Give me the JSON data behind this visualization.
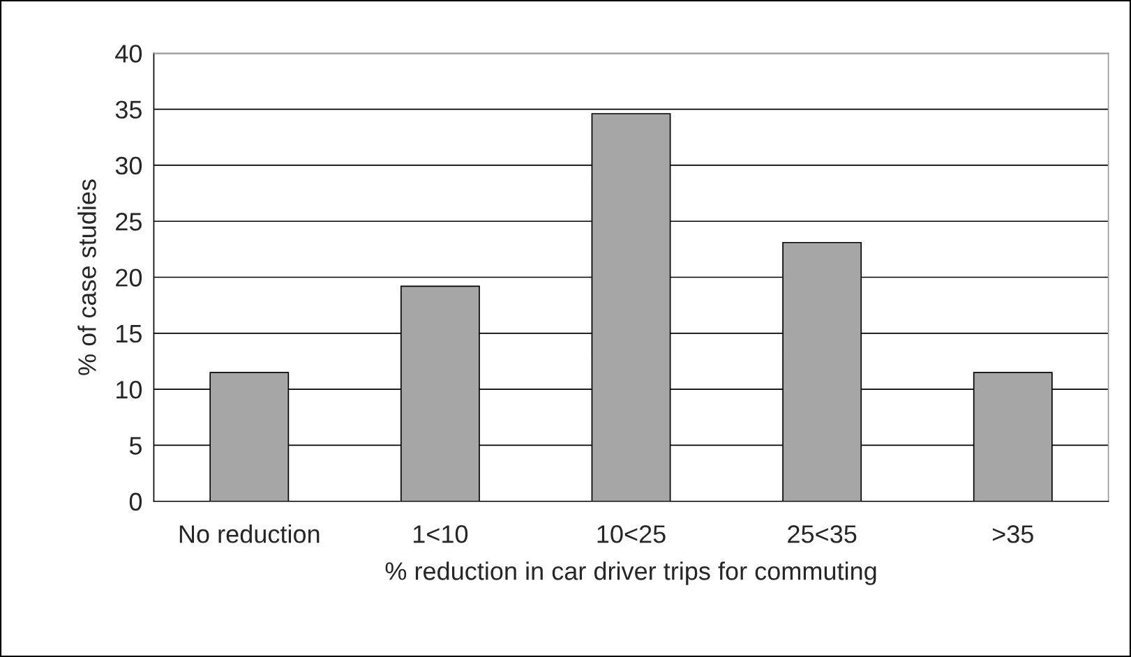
{
  "chart_data": {
    "type": "bar",
    "xlabel": "% reduction in car driver trips for commuting",
    "ylabel": "% of case studies",
    "categories": [
      "No reduction",
      "1<10",
      "10<25",
      "25<35",
      ">35"
    ],
    "values": [
      11.5,
      19.2,
      34.6,
      23.1,
      11.5
    ],
    "color": "#a6a6a6",
    "ylim": [
      0,
      40
    ],
    "yticks": [
      0,
      5,
      10,
      15,
      20,
      25,
      30,
      35,
      40
    ],
    "grid": "y",
    "legend": false
  }
}
